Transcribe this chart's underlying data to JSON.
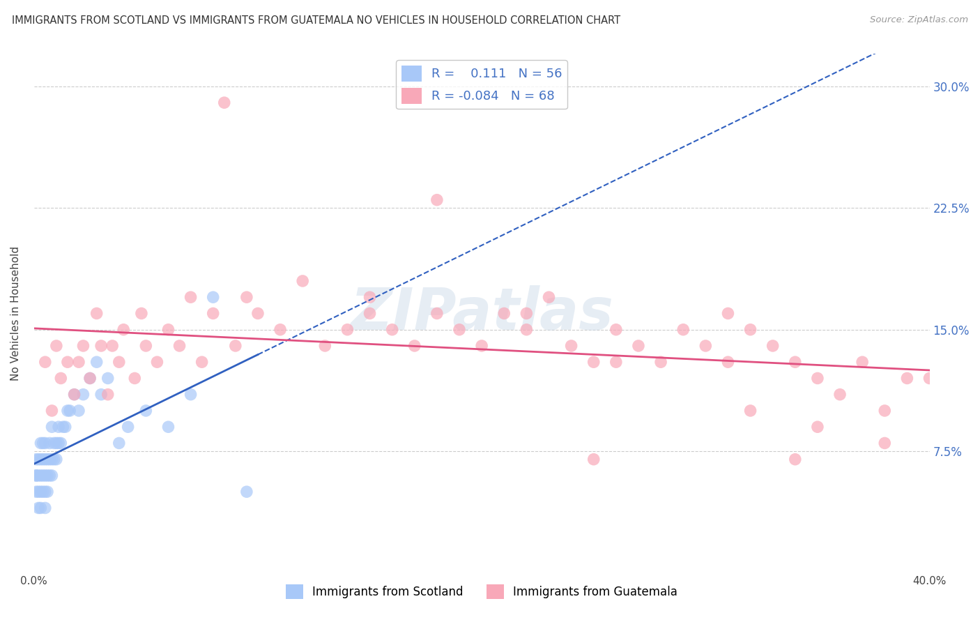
{
  "title": "IMMIGRANTS FROM SCOTLAND VS IMMIGRANTS FROM GUATEMALA NO VEHICLES IN HOUSEHOLD CORRELATION CHART",
  "source": "Source: ZipAtlas.com",
  "ylabel": "No Vehicles in Household",
  "scotland_color": "#a8c8f8",
  "guatemala_color": "#f8a8b8",
  "scotland_line_color": "#3060c0",
  "guatemala_line_color": "#e05080",
  "scotland_R": 0.111,
  "scotland_N": 56,
  "guatemala_R": -0.084,
  "guatemala_N": 68,
  "watermark": "ZIPatlas",
  "background_color": "#ffffff",
  "grid_color": "#cccccc",
  "xlim": [
    0.0,
    0.4
  ],
  "ylim": [
    0.0,
    0.32
  ],
  "y_ticks": [
    0.075,
    0.15,
    0.225,
    0.3
  ],
  "y_tick_labels": [
    "7.5%",
    "15.0%",
    "22.5%",
    "30.0%"
  ],
  "x_ticks": [
    0.0,
    0.4
  ],
  "x_tick_labels": [
    "0.0%",
    "40.0%"
  ],
  "scotland_x": [
    0.001,
    0.001,
    0.001,
    0.001,
    0.002,
    0.002,
    0.002,
    0.002,
    0.003,
    0.003,
    0.003,
    0.003,
    0.003,
    0.004,
    0.004,
    0.004,
    0.004,
    0.005,
    0.005,
    0.005,
    0.005,
    0.005,
    0.006,
    0.006,
    0.006,
    0.007,
    0.007,
    0.007,
    0.008,
    0.008,
    0.008,
    0.009,
    0.009,
    0.01,
    0.01,
    0.011,
    0.011,
    0.012,
    0.013,
    0.014,
    0.015,
    0.016,
    0.018,
    0.02,
    0.022,
    0.025,
    0.028,
    0.03,
    0.033,
    0.038,
    0.042,
    0.05,
    0.06,
    0.07,
    0.08,
    0.095
  ],
  "scotland_y": [
    0.05,
    0.06,
    0.06,
    0.07,
    0.04,
    0.05,
    0.06,
    0.07,
    0.04,
    0.05,
    0.06,
    0.07,
    0.08,
    0.05,
    0.06,
    0.07,
    0.08,
    0.04,
    0.05,
    0.06,
    0.07,
    0.08,
    0.05,
    0.06,
    0.07,
    0.06,
    0.07,
    0.08,
    0.06,
    0.07,
    0.09,
    0.07,
    0.08,
    0.07,
    0.08,
    0.08,
    0.09,
    0.08,
    0.09,
    0.09,
    0.1,
    0.1,
    0.11,
    0.1,
    0.11,
    0.12,
    0.13,
    0.11,
    0.12,
    0.08,
    0.09,
    0.1,
    0.09,
    0.11,
    0.17,
    0.05
  ],
  "guatemala_x": [
    0.005,
    0.008,
    0.01,
    0.012,
    0.015,
    0.018,
    0.02,
    0.022,
    0.025,
    0.028,
    0.03,
    0.033,
    0.035,
    0.038,
    0.04,
    0.045,
    0.048,
    0.05,
    0.055,
    0.06,
    0.065,
    0.07,
    0.075,
    0.08,
    0.085,
    0.09,
    0.095,
    0.1,
    0.11,
    0.12,
    0.13,
    0.14,
    0.15,
    0.16,
    0.17,
    0.18,
    0.19,
    0.2,
    0.21,
    0.22,
    0.23,
    0.24,
    0.25,
    0.26,
    0.27,
    0.28,
    0.29,
    0.3,
    0.31,
    0.32,
    0.33,
    0.34,
    0.35,
    0.36,
    0.37,
    0.38,
    0.39,
    0.18,
    0.22,
    0.35,
    0.26,
    0.31,
    0.34,
    0.15,
    0.25,
    0.32,
    0.38,
    0.4
  ],
  "guatemala_y": [
    0.13,
    0.1,
    0.14,
    0.12,
    0.13,
    0.11,
    0.13,
    0.14,
    0.12,
    0.16,
    0.14,
    0.11,
    0.14,
    0.13,
    0.15,
    0.12,
    0.16,
    0.14,
    0.13,
    0.15,
    0.14,
    0.17,
    0.13,
    0.16,
    0.29,
    0.14,
    0.17,
    0.16,
    0.15,
    0.18,
    0.14,
    0.15,
    0.17,
    0.15,
    0.14,
    0.16,
    0.15,
    0.14,
    0.16,
    0.15,
    0.17,
    0.14,
    0.13,
    0.15,
    0.14,
    0.13,
    0.15,
    0.14,
    0.13,
    0.15,
    0.14,
    0.13,
    0.12,
    0.11,
    0.13,
    0.1,
    0.12,
    0.23,
    0.16,
    0.09,
    0.13,
    0.16,
    0.07,
    0.16,
    0.07,
    0.1,
    0.08,
    0.12
  ]
}
